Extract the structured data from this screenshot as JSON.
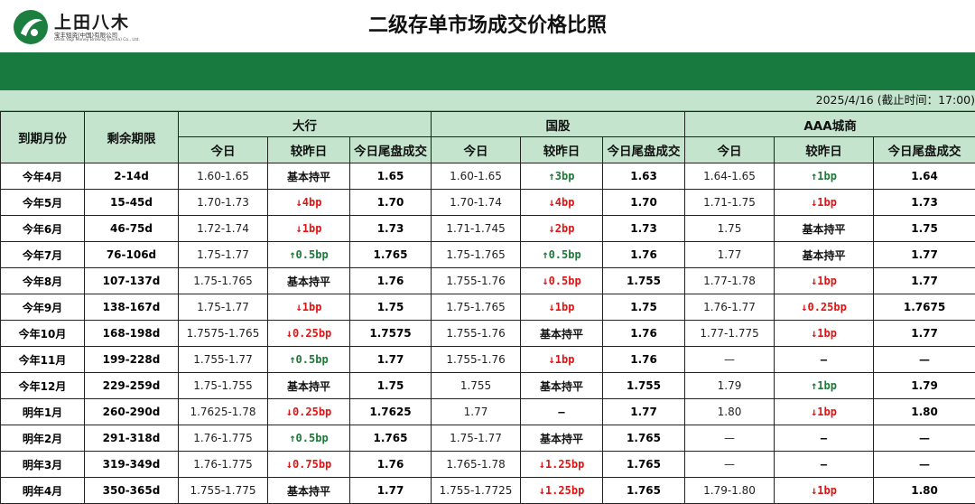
{
  "header": {
    "logo_name": "上田八木",
    "logo_sub": "宝丰短资(中国)有限公司",
    "logo_en": "Ueda Yagi Money Broking (China) Co., Ltd.",
    "title": "二级存单市场成交价格比照",
    "date_note": "2025/4/16 (截止时间：17:00)"
  },
  "colors": {
    "band": "#187a3f",
    "header_bg": "#c4e4cd",
    "up": "#1b7a37",
    "down": "#e31212"
  },
  "table": {
    "col_month": "到期月份",
    "col_term": "剩余期限",
    "groups": [
      "大行",
      "国股",
      "AAA城商"
    ],
    "sub_headers": [
      "今日",
      "较昨日",
      "今日尾盘成交"
    ],
    "rows": [
      {
        "month": "今年4月",
        "term": "2-14d",
        "cells": [
          {
            "range": "1.60-1.65",
            "chg": "基本持平",
            "dir": "flat",
            "close": "1.65"
          },
          {
            "range": "1.60-1.65",
            "chg": "3bp",
            "dir": "up",
            "close": "1.63"
          },
          {
            "range": "1.64-1.65",
            "chg": "1bp",
            "dir": "up",
            "close": "1.64"
          }
        ]
      },
      {
        "month": "今年5月",
        "term": "15-45d",
        "cells": [
          {
            "range": "1.70-1.73",
            "chg": "4bp",
            "dir": "down",
            "close": "1.70"
          },
          {
            "range": "1.70-1.74",
            "chg": "4bp",
            "dir": "down",
            "close": "1.70"
          },
          {
            "range": "1.71-1.75",
            "chg": "1bp",
            "dir": "down",
            "close": "1.73"
          }
        ]
      },
      {
        "month": "今年6月",
        "term": "46-75d",
        "cells": [
          {
            "range": "1.72-1.74",
            "chg": "1bp",
            "dir": "down",
            "close": "1.73"
          },
          {
            "range": "1.71-1.745",
            "chg": "2bp",
            "dir": "down",
            "close": "1.73"
          },
          {
            "range": "1.75",
            "chg": "基本持平",
            "dir": "flat",
            "close": "1.75"
          }
        ]
      },
      {
        "month": "今年7月",
        "term": "76-106d",
        "cells": [
          {
            "range": "1.75-1.77",
            "chg": "0.5bp",
            "dir": "up",
            "close": "1.765"
          },
          {
            "range": "1.75-1.765",
            "chg": "0.5bp",
            "dir": "up",
            "close": "1.76"
          },
          {
            "range": "1.77",
            "chg": "基本持平",
            "dir": "flat",
            "close": "1.77"
          }
        ]
      },
      {
        "month": "今年8月",
        "term": "107-137d",
        "cells": [
          {
            "range": "1.75-1.765",
            "chg": "基本持平",
            "dir": "flat",
            "close": "1.76"
          },
          {
            "range": "1.755-1.76",
            "chg": "0.5bp",
            "dir": "down",
            "close": "1.755"
          },
          {
            "range": "1.77-1.78",
            "chg": "1bp",
            "dir": "down",
            "close": "1.77"
          }
        ]
      },
      {
        "month": "今年9月",
        "term": "138-167d",
        "cells": [
          {
            "range": "1.75-1.77",
            "chg": "1bp",
            "dir": "down",
            "close": "1.75"
          },
          {
            "range": "1.75-1.765",
            "chg": "1bp",
            "dir": "down",
            "close": "1.75"
          },
          {
            "range": "1.76-1.77",
            "chg": "0.25bp",
            "dir": "down",
            "close": "1.7675"
          }
        ]
      },
      {
        "month": "今年10月",
        "term": "168-198d",
        "cells": [
          {
            "range": "1.7575-1.765",
            "chg": "0.25bp",
            "dir": "down",
            "close": "1.7575"
          },
          {
            "range": "1.755-1.76",
            "chg": "基本持平",
            "dir": "flat",
            "close": "1.76"
          },
          {
            "range": "1.77-1.775",
            "chg": "1bp",
            "dir": "down",
            "close": "1.77"
          }
        ]
      },
      {
        "month": "今年11月",
        "term": "199-228d",
        "cells": [
          {
            "range": "1.755-1.77",
            "chg": "0.5bp",
            "dir": "up",
            "close": "1.77"
          },
          {
            "range": "1.755-1.76",
            "chg": "1bp",
            "dir": "down",
            "close": "1.76"
          },
          {
            "range": "—",
            "chg": "—",
            "dir": "none",
            "close": "—"
          }
        ]
      },
      {
        "month": "今年12月",
        "term": "229-259d",
        "cells": [
          {
            "range": "1.75-1.755",
            "chg": "基本持平",
            "dir": "flat",
            "close": "1.75"
          },
          {
            "range": "1.755",
            "chg": "基本持平",
            "dir": "flat",
            "close": "1.755"
          },
          {
            "range": "1.79",
            "chg": "1bp",
            "dir": "up",
            "close": "1.79"
          }
        ]
      },
      {
        "month": "明年1月",
        "term": "260-290d",
        "cells": [
          {
            "range": "1.7625-1.78",
            "chg": "0.25bp",
            "dir": "down",
            "close": "1.7625"
          },
          {
            "range": "1.77",
            "chg": "—",
            "dir": "none",
            "close": "1.77"
          },
          {
            "range": "1.80",
            "chg": "1bp",
            "dir": "down",
            "close": "1.80"
          }
        ]
      },
      {
        "month": "明年2月",
        "term": "291-318d",
        "cells": [
          {
            "range": "1.76-1.775",
            "chg": "0.5bp",
            "dir": "up",
            "close": "1.765"
          },
          {
            "range": "1.75-1.77",
            "chg": "基本持平",
            "dir": "flat",
            "close": "1.765"
          },
          {
            "range": "—",
            "chg": "—",
            "dir": "none",
            "close": "—"
          }
        ]
      },
      {
        "month": "明年3月",
        "term": "319-349d",
        "cells": [
          {
            "range": "1.76-1.775",
            "chg": "0.75bp",
            "dir": "down",
            "close": "1.76"
          },
          {
            "range": "1.765-1.78",
            "chg": "1.25bp",
            "dir": "down",
            "close": "1.765"
          },
          {
            "range": "—",
            "chg": "—",
            "dir": "none",
            "close": "—"
          }
        ]
      },
      {
        "month": "明年4月",
        "term": "350-365d",
        "cells": [
          {
            "range": "1.755-1.775",
            "chg": "基本持平",
            "dir": "flat",
            "close": "1.77"
          },
          {
            "range": "1.755-1.7725",
            "chg": "1.25bp",
            "dir": "down",
            "close": "1.765"
          },
          {
            "range": "1.79-1.80",
            "chg": "1bp",
            "dir": "down",
            "close": "1.80"
          }
        ]
      }
    ]
  }
}
